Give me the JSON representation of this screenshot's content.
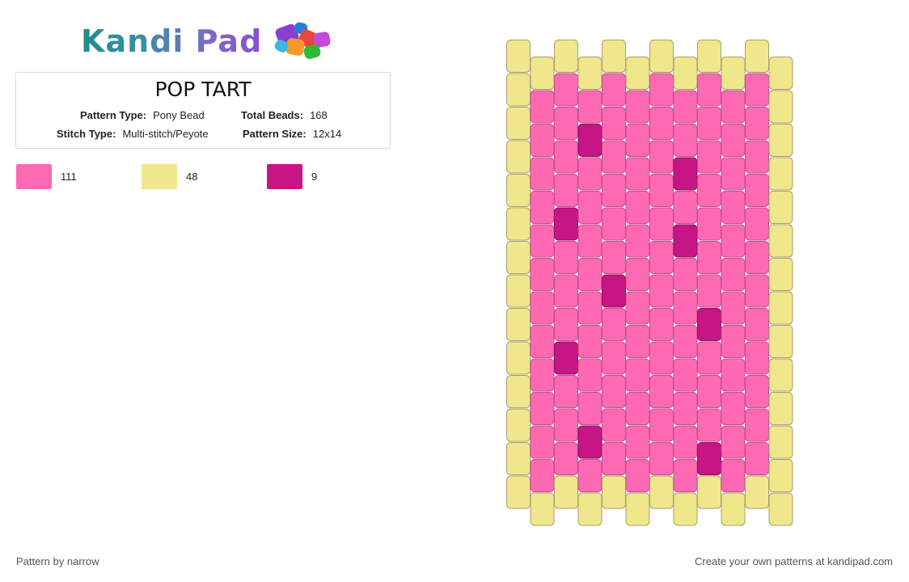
{
  "brand": {
    "name": "Kandi Pad"
  },
  "pattern": {
    "title": "POP TART",
    "type_label": "Pattern Type:",
    "type_value": "Pony Bead",
    "beads_label": "Total Beads:",
    "beads_value": "168",
    "stitch_label": "Stitch Type:",
    "stitch_value": "Multi-stitch/Peyote",
    "size_label": "Pattern Size:",
    "size_value": "12x14"
  },
  "legend": [
    {
      "color": "#ff69b4",
      "count": "111"
    },
    {
      "color": "#f0e68c",
      "count": "48"
    },
    {
      "color": "#c71585",
      "count": "9"
    }
  ],
  "colors": {
    "pink": "#ff69b4",
    "yellow": "#f0e68c",
    "magenta": "#c71585"
  },
  "bead_grid": {
    "columns": 12,
    "rows": 14,
    "cells": [
      "YYYYYYYYYYYY",
      "YPPPPPPPPPPY",
      "YPPMPPPPPPPY",
      "YPPPPPPMPPPY",
      "YPPPPPPPPPPY",
      "YPMPPPPMPPPY",
      "YPPPPPPPPPPY",
      "YPPPMPPPPPPY",
      "YPPPPPPPMPPY",
      "YPMPPPPPPPPY",
      "YPPPPPPPPPPY",
      "YPPMPPPPPPPY",
      "YPPPPPPPMPPY",
      "YYYYYYYYYYYY"
    ]
  },
  "footer": {
    "left": "Pattern by narrow",
    "right": "Create your own patterns at kandipad.com"
  }
}
